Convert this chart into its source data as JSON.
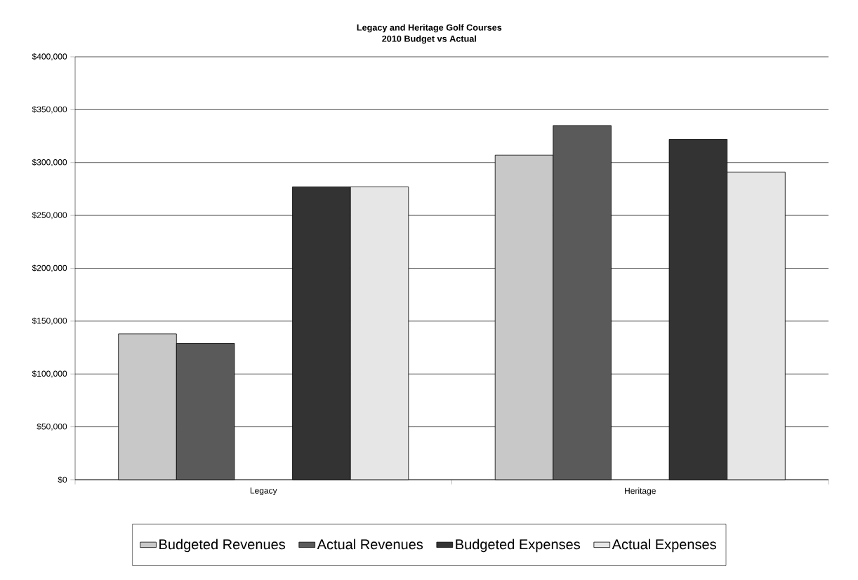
{
  "chart_data": {
    "type": "bar",
    "title": "Legacy and Heritage Golf Courses",
    "subtitle": "2010 Budget vs Actual",
    "categories": [
      "Legacy",
      "Heritage"
    ],
    "series": [
      {
        "name": "Budgeted Revenues",
        "color": "#c8c8c8",
        "values": [
          138000,
          307000
        ]
      },
      {
        "name": "Actual Revenues",
        "color": "#5a5a5a",
        "values": [
          129000,
          335000
        ]
      },
      {
        "name": "Budgeted Expenses",
        "color": "#333333",
        "values": [
          277000,
          322000
        ]
      },
      {
        "name": "Actual Expenses",
        "color": "#e6e6e6",
        "values": [
          277000,
          291000
        ]
      }
    ],
    "ylim": [
      0,
      400000
    ],
    "yticks": [
      {
        "value": 0,
        "label": "$0"
      },
      {
        "value": 50000,
        "label": "$50,000"
      },
      {
        "value": 100000,
        "label": "$100,000"
      },
      {
        "value": 150000,
        "label": "$150,000"
      },
      {
        "value": 200000,
        "label": "$200,000"
      },
      {
        "value": 250000,
        "label": "$250,000"
      },
      {
        "value": 300000,
        "label": "$300,000"
      },
      {
        "value": 350000,
        "label": "$350,000"
      },
      {
        "value": 400000,
        "label": "$400,000"
      }
    ],
    "grid": "y",
    "legend": "bottom"
  }
}
